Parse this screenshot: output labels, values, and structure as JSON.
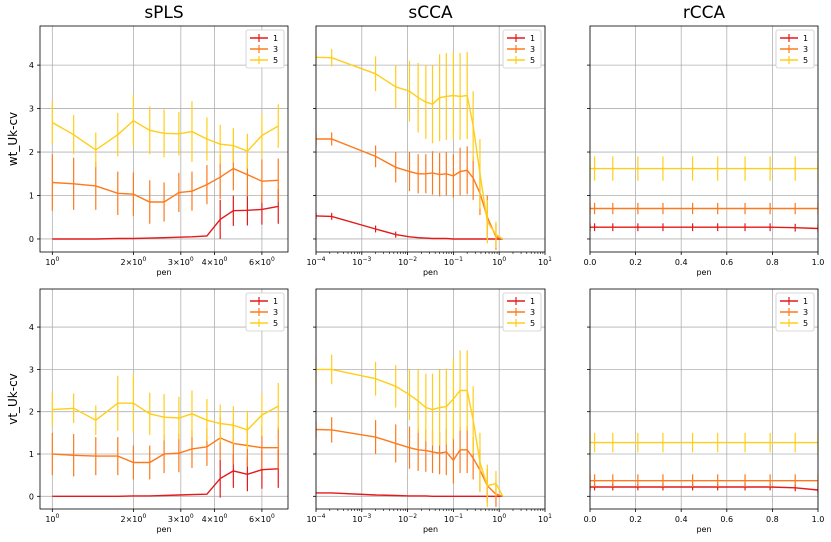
{
  "figure": {
    "column_titles": [
      "sPLS",
      "sCCA",
      "rCCA"
    ],
    "row_ylabels": [
      "wt_Uk-cv",
      "vt_Uk-cv"
    ],
    "series_colors": {
      "1": "#e31a1c",
      "3": "#fd7a1c",
      "5": "#ffce1a"
    }
  },
  "chart_data": [
    {
      "type": "line",
      "panel": "top-sPLS",
      "title": "sPLS",
      "xlabel": "pen",
      "ylabel": "wt_Uk-cv",
      "xscale": "log",
      "xlim": [
        0.9,
        7.5
      ],
      "ylim": [
        -0.3,
        4.9
      ],
      "xticks": [
        1,
        2,
        3,
        4,
        6
      ],
      "xticklabels": [
        "10^0",
        "2×10^0",
        "3×10^0",
        "4×10^0",
        "6×10^0"
      ],
      "yticks": [
        0,
        1,
        2,
        3,
        4
      ],
      "legend": "top-right",
      "x": [
        1.0,
        1.2,
        1.45,
        1.75,
        2.0,
        2.3,
        2.6,
        2.95,
        3.3,
        3.75,
        4.2,
        4.7,
        5.3,
        6.0,
        6.9
      ],
      "series": [
        {
          "name": "1",
          "values": [
            0,
            0,
            0,
            0.01,
            0.01,
            0.02,
            0.03,
            0.04,
            0.05,
            0.07,
            0.45,
            0.65,
            0.66,
            0.68,
            0.75
          ],
          "errors": [
            0,
            0,
            0,
            0,
            0,
            0,
            0,
            0,
            0,
            0,
            0.45,
            0.35,
            0.35,
            0.35,
            0.4
          ]
        },
        {
          "name": "3",
          "values": [
            1.3,
            1.27,
            1.22,
            1.05,
            1.03,
            0.85,
            0.85,
            1.07,
            1.1,
            1.25,
            1.42,
            1.62,
            1.48,
            1.33,
            1.35
          ],
          "errors": [
            0.65,
            0.6,
            0.55,
            0.5,
            0.5,
            0.5,
            0.45,
            0.45,
            0.45,
            0.45,
            0.5,
            0.5,
            0.5,
            0.5,
            0.5
          ]
        },
        {
          "name": "5",
          "values": [
            2.68,
            2.4,
            2.05,
            2.4,
            2.72,
            2.5,
            2.43,
            2.42,
            2.47,
            2.3,
            2.18,
            2.15,
            2.02,
            2.38,
            2.6
          ],
          "errors": [
            0.5,
            0.45,
            0.4,
            0.5,
            0.6,
            0.55,
            0.55,
            0.5,
            0.7,
            0.5,
            0.45,
            0.4,
            0.4,
            0.5,
            0.5
          ]
        }
      ]
    },
    {
      "type": "line",
      "panel": "top-sCCA",
      "title": "sCCA",
      "xlabel": "pen",
      "ylabel": "",
      "xscale": "log",
      "xlim": [
        0.0001,
        10
      ],
      "ylim": [
        -0.3,
        4.9
      ],
      "xticks": [
        0.0001,
        0.001,
        0.01,
        0.1,
        1,
        10
      ],
      "xticklabels": [
        "10^-4",
        "10^-3",
        "10^-2",
        "10^-1",
        "10^0",
        "10^1"
      ],
      "yticks": [
        0,
        1,
        2,
        3,
        4
      ],
      "legend": "top-right",
      "x": [
        0.0001,
        0.00022,
        0.002,
        0.0055,
        0.011,
        0.017,
        0.025,
        0.035,
        0.05,
        0.07,
        0.1,
        0.14,
        0.2,
        0.27,
        0.38,
        0.55,
        0.85,
        1.2
      ],
      "series": [
        {
          "name": "1",
          "values": [
            0.53,
            0.52,
            0.23,
            0.1,
            0.05,
            0.03,
            0.02,
            0.01,
            0.01,
            0.01,
            0,
            0,
            0,
            0,
            0,
            0,
            0,
            0
          ],
          "errors": [
            0.07,
            0.08,
            0.08,
            0.07,
            0,
            0,
            0,
            0,
            0,
            0,
            0,
            0,
            0,
            0,
            0,
            0,
            0,
            0
          ]
        },
        {
          "name": "3",
          "values": [
            2.3,
            2.3,
            1.9,
            1.65,
            1.55,
            1.5,
            1.5,
            1.52,
            1.48,
            1.5,
            1.45,
            1.55,
            1.58,
            1.4,
            1.05,
            0.5,
            0.05,
            0
          ],
          "errors": [
            0.15,
            0.15,
            0.25,
            0.35,
            0.45,
            0.45,
            0.45,
            0.5,
            0.5,
            0.5,
            0.5,
            0.55,
            0.55,
            0.5,
            0.5,
            0.5,
            0.3,
            0
          ]
        },
        {
          "name": "5",
          "values": [
            4.18,
            4.17,
            3.8,
            3.5,
            3.4,
            3.25,
            3.15,
            3.1,
            3.25,
            3.28,
            3.3,
            3.28,
            3.3,
            2.6,
            1.5,
            0.4,
            0.1,
            0
          ],
          "errors": [
            0.15,
            0.2,
            0.4,
            0.5,
            0.7,
            0.8,
            0.85,
            0.9,
            1.0,
            1.0,
            1.0,
            1.0,
            1.0,
            0.8,
            0.8,
            0.5,
            0.3,
            0
          ]
        }
      ]
    },
    {
      "type": "line",
      "panel": "top-rCCA",
      "title": "rCCA",
      "xlabel": "pen",
      "ylabel": "",
      "xscale": "linear",
      "xlim": [
        0,
        1
      ],
      "ylim": [
        -0.3,
        4.9
      ],
      "xticks": [
        0,
        0.2,
        0.4,
        0.6,
        0.8,
        1
      ],
      "xticklabels": [
        "0.0",
        "0.2",
        "0.4",
        "0.6",
        "0.8",
        "1.0"
      ],
      "yticks": [
        0,
        1,
        2,
        3,
        4
      ],
      "legend": "top-right",
      "x": [
        0.0,
        0.02,
        0.1,
        0.21,
        0.32,
        0.45,
        0.56,
        0.68,
        0.79,
        0.9,
        1.0
      ],
      "series": [
        {
          "name": "1",
          "values": [
            0.27,
            0.27,
            0.27,
            0.27,
            0.27,
            0.27,
            0.27,
            0.27,
            0.27,
            0.26,
            0.24
          ],
          "errors": [
            0.09,
            0.09,
            0.09,
            0.09,
            0.09,
            0.09,
            0.09,
            0.09,
            0.09,
            0.09,
            0.09
          ]
        },
        {
          "name": "3",
          "values": [
            0.7,
            0.7,
            0.7,
            0.7,
            0.7,
            0.7,
            0.7,
            0.7,
            0.7,
            0.7,
            0.7
          ],
          "errors": [
            0.13,
            0.13,
            0.13,
            0.13,
            0.13,
            0.13,
            0.13,
            0.13,
            0.13,
            0.13,
            0.13
          ]
        },
        {
          "name": "5",
          "values": [
            1.62,
            1.62,
            1.62,
            1.62,
            1.62,
            1.62,
            1.62,
            1.62,
            1.62,
            1.62,
            1.62
          ],
          "errors": [
            0.28,
            0.28,
            0.28,
            0.28,
            0.28,
            0.28,
            0.28,
            0.28,
            0.28,
            0.28,
            0.28
          ]
        }
      ]
    },
    {
      "type": "line",
      "panel": "bottom-sPLS",
      "title": "",
      "xlabel": "pen",
      "ylabel": "vt_Uk-cv",
      "xscale": "log",
      "xlim": [
        0.9,
        7.5
      ],
      "ylim": [
        -0.3,
        4.9
      ],
      "xticks": [
        1,
        2,
        3,
        4,
        6
      ],
      "xticklabels": [
        "10^0",
        "2×10^0",
        "3×10^0",
        "4×10^0",
        "6×10^0"
      ],
      "yticks": [
        0,
        1,
        2,
        3,
        4
      ],
      "legend": "top-right",
      "x": [
        1.0,
        1.2,
        1.45,
        1.75,
        2.0,
        2.3,
        2.6,
        2.95,
        3.3,
        3.75,
        4.2,
        4.7,
        5.3,
        6.0,
        6.9
      ],
      "series": [
        {
          "name": "1",
          "values": [
            0,
            0,
            0,
            0,
            0.01,
            0.01,
            0.02,
            0.03,
            0.04,
            0.05,
            0.42,
            0.6,
            0.52,
            0.63,
            0.65
          ],
          "errors": [
            0,
            0,
            0,
            0,
            0,
            0,
            0,
            0,
            0,
            0,
            0.45,
            0.4,
            0.4,
            0.45,
            0.45
          ]
        },
        {
          "name": "3",
          "values": [
            1.0,
            0.97,
            0.95,
            0.95,
            0.8,
            0.8,
            1.0,
            1.02,
            1.12,
            1.17,
            1.38,
            1.25,
            1.2,
            1.15,
            1.15
          ],
          "errors": [
            0.5,
            0.5,
            0.45,
            0.45,
            0.4,
            0.4,
            0.45,
            0.45,
            0.45,
            0.45,
            0.5,
            0.5,
            0.5,
            0.5,
            0.5
          ]
        },
        {
          "name": "5",
          "values": [
            2.05,
            2.08,
            1.8,
            2.2,
            2.2,
            1.95,
            1.87,
            1.85,
            1.95,
            1.8,
            1.72,
            1.68,
            1.57,
            1.92,
            2.13
          ],
          "errors": [
            0.4,
            0.35,
            0.35,
            0.65,
            0.7,
            0.5,
            0.55,
            0.5,
            0.55,
            0.5,
            0.45,
            0.45,
            0.45,
            0.5,
            0.55
          ]
        }
      ]
    },
    {
      "type": "line",
      "panel": "bottom-sCCA",
      "title": "",
      "xlabel": "pen",
      "ylabel": "",
      "xscale": "log",
      "xlim": [
        0.0001,
        10
      ],
      "ylim": [
        -0.3,
        4.9
      ],
      "xticks": [
        0.0001,
        0.001,
        0.01,
        0.1,
        1,
        10
      ],
      "xticklabels": [
        "10^-4",
        "10^-3",
        "10^-2",
        "10^-1",
        "10^0",
        "10^1"
      ],
      "yticks": [
        0,
        1,
        2,
        3,
        4
      ],
      "legend": "top-right",
      "x": [
        0.0001,
        0.00022,
        0.002,
        0.0055,
        0.011,
        0.017,
        0.025,
        0.035,
        0.05,
        0.07,
        0.1,
        0.14,
        0.2,
        0.27,
        0.38,
        0.55,
        0.85,
        1.2
      ],
      "series": [
        {
          "name": "1",
          "values": [
            0.08,
            0.08,
            0.03,
            0.02,
            0.01,
            0.01,
            0.01,
            0,
            0,
            0,
            0,
            0,
            0,
            0,
            0,
            0,
            0,
            0
          ],
          "errors": [
            0,
            0,
            0,
            0,
            0,
            0,
            0,
            0,
            0,
            0,
            0,
            0,
            0,
            0,
            0,
            0,
            0,
            0
          ]
        },
        {
          "name": "3",
          "values": [
            1.58,
            1.57,
            1.4,
            1.25,
            1.15,
            1.1,
            1.08,
            1.05,
            1.02,
            1.05,
            0.85,
            1.1,
            1.1,
            0.9,
            0.62,
            0.25,
            0.05,
            0
          ],
          "errors": [
            0.2,
            0.3,
            0.4,
            0.45,
            0.5,
            0.5,
            0.5,
            0.5,
            0.5,
            0.55,
            0.55,
            0.55,
            0.55,
            0.5,
            0.5,
            0.4,
            0.3,
            0
          ]
        },
        {
          "name": "5",
          "values": [
            3.0,
            3.0,
            2.78,
            2.6,
            2.4,
            2.25,
            2.1,
            2.05,
            2.1,
            2.12,
            2.3,
            2.5,
            2.5,
            1.8,
            0.8,
            0.25,
            0.3,
            0
          ],
          "errors": [
            0.3,
            0.35,
            0.4,
            0.5,
            0.6,
            0.75,
            0.8,
            0.85,
            0.9,
            0.9,
            0.95,
            0.95,
            0.95,
            0.8,
            0.7,
            0.5,
            0.3,
            0
          ]
        }
      ]
    },
    {
      "type": "line",
      "panel": "bottom-rCCA",
      "title": "",
      "xlabel": "pen",
      "ylabel": "",
      "xscale": "linear",
      "xlim": [
        0,
        1
      ],
      "ylim": [
        -0.3,
        4.9
      ],
      "xticks": [
        0,
        0.2,
        0.4,
        0.6,
        0.8,
        1
      ],
      "xticklabels": [
        "0.0",
        "0.2",
        "0.4",
        "0.6",
        "0.8",
        "1.0"
      ],
      "yticks": [
        0,
        1,
        2,
        3,
        4
      ],
      "legend": "top-right",
      "x": [
        0.0,
        0.02,
        0.1,
        0.21,
        0.32,
        0.45,
        0.56,
        0.68,
        0.79,
        0.9,
        1.0
      ],
      "series": [
        {
          "name": "1",
          "values": [
            0.22,
            0.22,
            0.22,
            0.22,
            0.22,
            0.22,
            0.22,
            0.22,
            0.22,
            0.2,
            0.15
          ],
          "errors": [
            0.08,
            0.08,
            0.08,
            0.08,
            0.08,
            0.08,
            0.08,
            0.08,
            0.08,
            0.08,
            0.08
          ]
        },
        {
          "name": "3",
          "values": [
            0.37,
            0.37,
            0.37,
            0.37,
            0.37,
            0.37,
            0.37,
            0.37,
            0.37,
            0.37,
            0.37
          ],
          "errors": [
            0.15,
            0.15,
            0.15,
            0.15,
            0.15,
            0.15,
            0.15,
            0.15,
            0.15,
            0.15,
            0.15
          ]
        },
        {
          "name": "5",
          "values": [
            1.27,
            1.27,
            1.27,
            1.27,
            1.27,
            1.27,
            1.27,
            1.27,
            1.27,
            1.27,
            1.27
          ],
          "errors": [
            0.23,
            0.23,
            0.23,
            0.23,
            0.23,
            0.23,
            0.23,
            0.23,
            0.23,
            0.23,
            0.23
          ]
        }
      ]
    }
  ]
}
